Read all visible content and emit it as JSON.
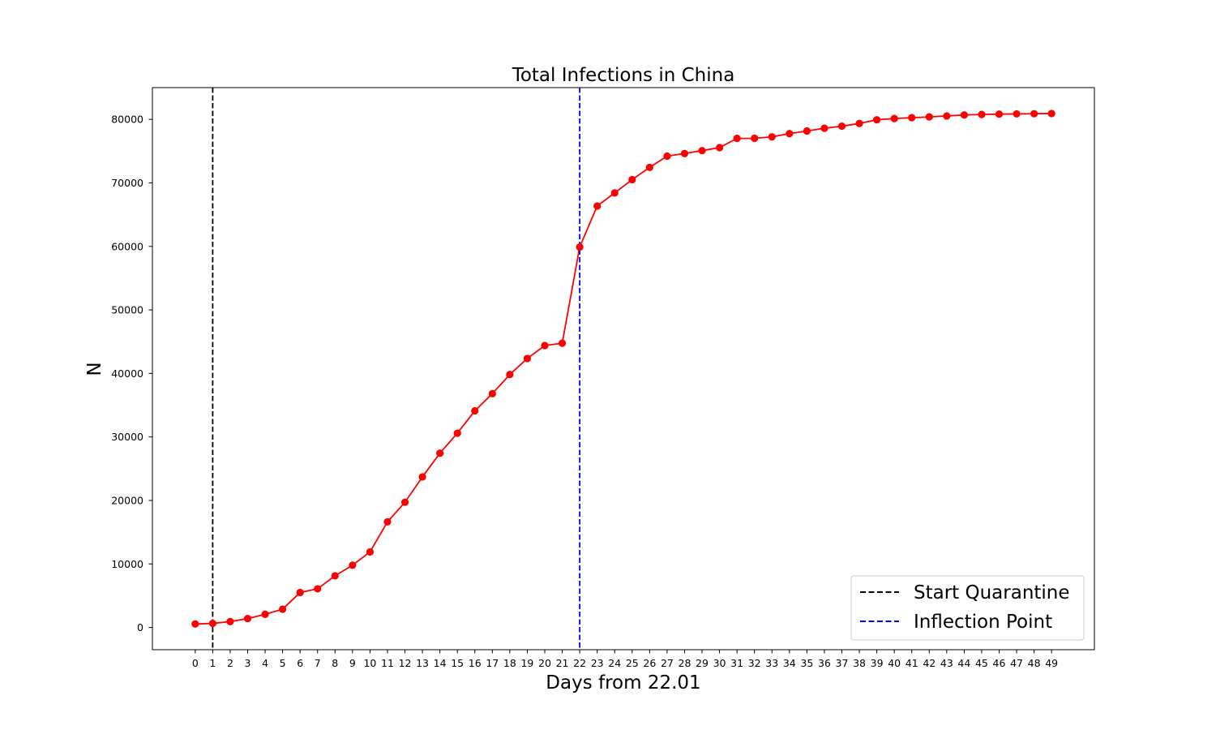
{
  "chart_data": {
    "type": "line",
    "title": "Total Infections in China",
    "xlabel": "Days from 22.01",
    "ylabel": "N",
    "xlim": [
      -2.45,
      51.45
    ],
    "ylim": [
      -3500,
      85000
    ],
    "x_ticks": [
      0,
      1,
      2,
      3,
      4,
      5,
      6,
      7,
      8,
      9,
      10,
      11,
      12,
      13,
      14,
      15,
      16,
      17,
      18,
      19,
      20,
      21,
      22,
      23,
      24,
      25,
      26,
      27,
      28,
      29,
      30,
      31,
      32,
      33,
      34,
      35,
      36,
      37,
      38,
      39,
      40,
      41,
      42,
      43,
      44,
      45,
      46,
      47,
      48,
      49
    ],
    "y_ticks": [
      0,
      10000,
      20000,
      30000,
      40000,
      50000,
      60000,
      70000,
      80000
    ],
    "grid": false,
    "legend_position": "bottom-right",
    "series": [
      {
        "color": "#ff0000",
        "marker": "circle",
        "x": [
          0,
          1,
          2,
          3,
          4,
          5,
          6,
          7,
          8,
          9,
          10,
          11,
          12,
          13,
          14,
          15,
          16,
          17,
          18,
          19,
          20,
          21,
          22,
          23,
          24,
          25,
          26,
          27,
          28,
          29,
          30,
          31,
          32,
          33,
          34,
          35,
          36,
          37,
          38,
          39,
          40,
          41,
          42,
          43,
          44,
          45,
          46,
          47,
          48,
          49
        ],
        "values": [
          548,
          643,
          920,
          1406,
          2075,
          2877,
          5509,
          6087,
          8141,
          9802,
          11891,
          16630,
          19716,
          23707,
          27440,
          30587,
          34110,
          36814,
          39829,
          42354,
          44386,
          44759,
          59895,
          66358,
          68413,
          70513,
          72434,
          74211,
          74619,
          75077,
          75550,
          77001,
          77022,
          77241,
          77754,
          78166,
          78600,
          78928,
          79356,
          79932,
          80136,
          80261,
          80386,
          80537,
          80690,
          80770,
          80823,
          80860,
          80887,
          80921
        ]
      }
    ],
    "vlines": [
      {
        "name": "Start Quarantine",
        "x": 1,
        "color": "#000000",
        "style": "dashed"
      },
      {
        "name": "Inflection Point",
        "x": 22,
        "color": "#0000ff",
        "style": "dashed"
      }
    ]
  }
}
